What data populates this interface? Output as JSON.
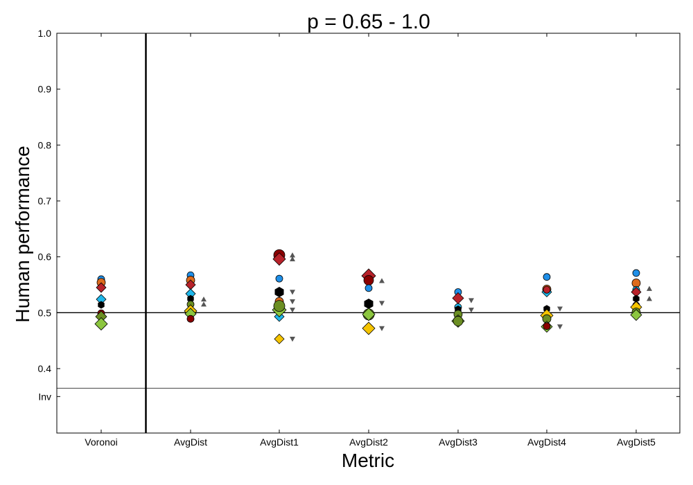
{
  "chart_data": {
    "type": "scatter",
    "title": "p = 0.65 - 1.0",
    "xlabel": "Metric",
    "ylabel": "Human performance",
    "categories": [
      "Voronoi",
      "AvgDist",
      "AvgDist1",
      "AvgDist2",
      "AvgDist3",
      "AvgDist4",
      "AvgDist5"
    ],
    "ylim": [
      0.33,
      1.0
    ],
    "yticks": [
      {
        "value": 1.0,
        "label": "1.0"
      },
      {
        "value": 0.9,
        "label": "0.9"
      },
      {
        "value": 0.8,
        "label": "0.8"
      },
      {
        "value": 0.7,
        "label": "0.7"
      },
      {
        "value": 0.6,
        "label": "0.6"
      },
      {
        "value": 0.5,
        "label": "0.5"
      },
      {
        "value": 0.4,
        "label": "0.4"
      },
      {
        "value": 0.35,
        "label": "Inv"
      }
    ],
    "reference_line": 0.5,
    "inv_divider": 0.365,
    "group_divider_after": "Voronoi",
    "colors": {
      "blue": "#1f8fe8",
      "orange": "#dd6b1d",
      "red": "#b8222a",
      "cyan": "#1fb7ea",
      "black": "#000000",
      "darkred": "#8a0000",
      "olive": "#6b8e23",
      "lime": "#8cc63f",
      "gold": "#f5c400",
      "gray": "#555555"
    },
    "points": [
      {
        "metric": "Voronoi",
        "y": 0.56,
        "marker": "circle",
        "color": "blue",
        "size": 5
      },
      {
        "metric": "Voronoi",
        "y": 0.554,
        "marker": "circle",
        "color": "orange",
        "size": 6
      },
      {
        "metric": "Voronoi",
        "y": 0.545,
        "marker": "diamond",
        "color": "red",
        "size": 6
      },
      {
        "metric": "Voronoi",
        "y": 0.524,
        "marker": "diamond",
        "color": "cyan",
        "size": 6
      },
      {
        "metric": "Voronoi",
        "y": 0.514,
        "marker": "hexagon",
        "color": "black",
        "size": 5
      },
      {
        "metric": "Voronoi",
        "y": 0.499,
        "marker": "circle",
        "color": "darkred",
        "size": 5
      },
      {
        "metric": "Voronoi",
        "y": 0.493,
        "marker": "diamond",
        "color": "olive",
        "size": 7
      },
      {
        "metric": "Voronoi",
        "y": 0.48,
        "marker": "diamond",
        "color": "lime",
        "size": 8
      },
      {
        "metric": "AvgDist",
        "y": 0.567,
        "marker": "circle",
        "color": "blue",
        "size": 5
      },
      {
        "metric": "AvgDist",
        "y": 0.558,
        "marker": "circle",
        "color": "orange",
        "size": 6
      },
      {
        "metric": "AvgDist",
        "y": 0.55,
        "marker": "diamond",
        "color": "red",
        "size": 6
      },
      {
        "metric": "AvgDist",
        "y": 0.534,
        "marker": "diamond",
        "color": "cyan",
        "size": 6
      },
      {
        "metric": "AvgDist",
        "y": 0.525,
        "marker": "hexagon",
        "color": "black",
        "size": 5
      },
      {
        "metric": "AvgDist",
        "y": 0.515,
        "marker": "circle",
        "color": "olive",
        "size": 5
      },
      {
        "metric": "AvgDist",
        "y": 0.503,
        "marker": "diamond",
        "color": "gold",
        "size": 8
      },
      {
        "metric": "AvgDist",
        "y": 0.498,
        "marker": "diamond",
        "color": "lime",
        "size": 7
      },
      {
        "metric": "AvgDist",
        "y": 0.489,
        "marker": "circle",
        "color": "darkred",
        "size": 5
      },
      {
        "metric": "AvgDist",
        "y": 0.524,
        "marker": "triangle-up",
        "color": "gray",
        "size": 4,
        "offset": true
      },
      {
        "metric": "AvgDist",
        "y": 0.515,
        "marker": "triangle-up",
        "color": "gray",
        "size": 4,
        "offset": true
      },
      {
        "metric": "AvgDist1",
        "y": 0.603,
        "marker": "circle",
        "color": "darkred",
        "size": 8
      },
      {
        "metric": "AvgDist1",
        "y": 0.596,
        "marker": "diamond",
        "color": "red",
        "size": 8
      },
      {
        "metric": "AvgDist1",
        "y": 0.561,
        "marker": "circle",
        "color": "blue",
        "size": 5
      },
      {
        "metric": "AvgDist1",
        "y": 0.537,
        "marker": "hexagon",
        "color": "black",
        "size": 7
      },
      {
        "metric": "AvgDist1",
        "y": 0.52,
        "marker": "circle",
        "color": "orange",
        "size": 6
      },
      {
        "metric": "AvgDist1",
        "y": 0.493,
        "marker": "diamond",
        "color": "cyan",
        "size": 6
      },
      {
        "metric": "AvgDist1",
        "y": 0.505,
        "marker": "diamond",
        "color": "lime",
        "size": 9
      },
      {
        "metric": "AvgDist1",
        "y": 0.512,
        "marker": "circle",
        "color": "olive",
        "size": 8
      },
      {
        "metric": "AvgDist1",
        "y": 0.453,
        "marker": "diamond",
        "color": "gold",
        "size": 6
      },
      {
        "metric": "AvgDist1",
        "y": 0.603,
        "marker": "triangle-up",
        "color": "gray",
        "size": 4,
        "offset": true
      },
      {
        "metric": "AvgDist1",
        "y": 0.596,
        "marker": "triangle-up",
        "color": "gray",
        "size": 4,
        "offset": true
      },
      {
        "metric": "AvgDist1",
        "y": 0.537,
        "marker": "triangle-down",
        "color": "gray",
        "size": 4,
        "offset": true
      },
      {
        "metric": "AvgDist1",
        "y": 0.52,
        "marker": "triangle-down",
        "color": "gray",
        "size": 4,
        "offset": true
      },
      {
        "metric": "AvgDist1",
        "y": 0.505,
        "marker": "triangle-down",
        "color": "gray",
        "size": 4,
        "offset": true
      },
      {
        "metric": "AvgDist1",
        "y": 0.453,
        "marker": "triangle-down",
        "color": "gray",
        "size": 4,
        "offset": true
      },
      {
        "metric": "AvgDist2",
        "y": 0.566,
        "marker": "diamond",
        "color": "red",
        "size": 9
      },
      {
        "metric": "AvgDist2",
        "y": 0.558,
        "marker": "circle",
        "color": "darkred",
        "size": 7
      },
      {
        "metric": "AvgDist2",
        "y": 0.544,
        "marker": "circle",
        "color": "blue",
        "size": 5
      },
      {
        "metric": "AvgDist2",
        "y": 0.516,
        "marker": "hexagon",
        "color": "black",
        "size": 7
      },
      {
        "metric": "AvgDist2",
        "y": 0.497,
        "marker": "circle",
        "color": "olive",
        "size": 8
      },
      {
        "metric": "AvgDist2",
        "y": 0.497,
        "marker": "diamond",
        "color": "lime",
        "size": 8
      },
      {
        "metric": "AvgDist2",
        "y": 0.472,
        "marker": "diamond",
        "color": "gold",
        "size": 8
      },
      {
        "metric": "AvgDist2",
        "y": 0.557,
        "marker": "triangle-up",
        "color": "gray",
        "size": 4,
        "offset": true
      },
      {
        "metric": "AvgDist2",
        "y": 0.517,
        "marker": "triangle-down",
        "color": "gray",
        "size": 4,
        "offset": true
      },
      {
        "metric": "AvgDist2",
        "y": 0.472,
        "marker": "triangle-down",
        "color": "gray",
        "size": 4,
        "offset": true
      },
      {
        "metric": "AvgDist3",
        "y": 0.537,
        "marker": "circle",
        "color": "blue",
        "size": 5
      },
      {
        "metric": "AvgDist3",
        "y": 0.526,
        "marker": "diamond",
        "color": "red",
        "size": 7
      },
      {
        "metric": "AvgDist3",
        "y": 0.51,
        "marker": "circle",
        "color": "cyan",
        "size": 5
      },
      {
        "metric": "AvgDist3",
        "y": 0.506,
        "marker": "hexagon",
        "color": "black",
        "size": 5
      },
      {
        "metric": "AvgDist3",
        "y": 0.497,
        "marker": "circle",
        "color": "olive",
        "size": 6
      },
      {
        "metric": "AvgDist3",
        "y": 0.485,
        "marker": "diamond",
        "color": "lime",
        "size": 8
      },
      {
        "metric": "AvgDist3",
        "y": 0.485,
        "marker": "circle",
        "color": "olive",
        "size": 7
      },
      {
        "metric": "AvgDist3",
        "y": 0.522,
        "marker": "triangle-down",
        "color": "gray",
        "size": 4,
        "offset": true
      },
      {
        "metric": "AvgDist3",
        "y": 0.505,
        "marker": "triangle-down",
        "color": "gray",
        "size": 4,
        "offset": true
      },
      {
        "metric": "AvgDist4",
        "y": 0.564,
        "marker": "circle",
        "color": "blue",
        "size": 5
      },
      {
        "metric": "AvgDist4",
        "y": 0.542,
        "marker": "circle",
        "color": "orange",
        "size": 6
      },
      {
        "metric": "AvgDist4",
        "y": 0.537,
        "marker": "diamond",
        "color": "cyan",
        "size": 6
      },
      {
        "metric": "AvgDist4",
        "y": 0.541,
        "marker": "circle",
        "color": "red",
        "size": 5
      },
      {
        "metric": "AvgDist4",
        "y": 0.507,
        "marker": "hexagon",
        "color": "black",
        "size": 5
      },
      {
        "metric": "AvgDist4",
        "y": 0.495,
        "marker": "diamond",
        "color": "gold",
        "size": 8
      },
      {
        "metric": "AvgDist4",
        "y": 0.489,
        "marker": "circle",
        "color": "olive",
        "size": 6
      },
      {
        "metric": "AvgDist4",
        "y": 0.475,
        "marker": "diamond",
        "color": "lime",
        "size": 7
      },
      {
        "metric": "AvgDist4",
        "y": 0.476,
        "marker": "circle",
        "color": "darkred",
        "size": 5
      },
      {
        "metric": "AvgDist4",
        "y": 0.507,
        "marker": "triangle-down",
        "color": "gray",
        "size": 4,
        "offset": true
      },
      {
        "metric": "AvgDist4",
        "y": 0.475,
        "marker": "triangle-down",
        "color": "gray",
        "size": 4,
        "offset": true
      },
      {
        "metric": "AvgDist5",
        "y": 0.571,
        "marker": "circle",
        "color": "blue",
        "size": 5
      },
      {
        "metric": "AvgDist5",
        "y": 0.553,
        "marker": "circle",
        "color": "orange",
        "size": 6
      },
      {
        "metric": "AvgDist5",
        "y": 0.541,
        "marker": "circle",
        "color": "cyan",
        "size": 5
      },
      {
        "metric": "AvgDist5",
        "y": 0.537,
        "marker": "diamond",
        "color": "red",
        "size": 6
      },
      {
        "metric": "AvgDist5",
        "y": 0.525,
        "marker": "hexagon",
        "color": "black",
        "size": 5
      },
      {
        "metric": "AvgDist5",
        "y": 0.513,
        "marker": "circle",
        "color": "darkred",
        "size": 5
      },
      {
        "metric": "AvgDist5",
        "y": 0.51,
        "marker": "diamond",
        "color": "gold",
        "size": 7
      },
      {
        "metric": "AvgDist5",
        "y": 0.501,
        "marker": "circle",
        "color": "olive",
        "size": 6
      },
      {
        "metric": "AvgDist5",
        "y": 0.496,
        "marker": "diamond",
        "color": "lime",
        "size": 7
      },
      {
        "metric": "AvgDist5",
        "y": 0.543,
        "marker": "triangle-up",
        "color": "gray",
        "size": 4,
        "offset": true
      },
      {
        "metric": "AvgDist5",
        "y": 0.525,
        "marker": "triangle-up",
        "color": "gray",
        "size": 4,
        "offset": true
      }
    ]
  }
}
